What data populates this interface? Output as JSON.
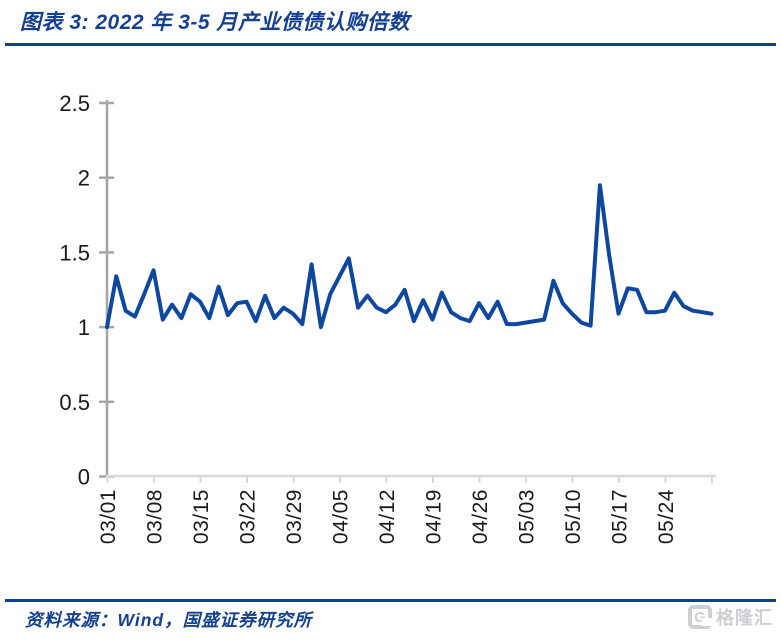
{
  "header": {
    "title": "图表 3:  2022 年 3-5 月产业债债认购倍数"
  },
  "footer": {
    "source_label": "资料来源：Wind，国盛证券研究所"
  },
  "watermark": {
    "logo_letter": "G",
    "brand": "格隆汇"
  },
  "colors": {
    "accent_navy": "#14418f",
    "line_blue": "#0e479f",
    "y_axis_gray": "#a6a6a6",
    "x_axis_gray": "#d9d9d9",
    "tick_label_color": "#1a1a1a",
    "watermark_gray": "#c4c8cc"
  },
  "chart_data": {
    "type": "line",
    "title": "2022 年 3-5 月产业债债认购倍数",
    "xlabel": "",
    "ylabel": "",
    "ylim": [
      0,
      2.5
    ],
    "yticks": [
      0,
      0.5,
      1,
      1.5,
      2,
      2.5
    ],
    "y_tick_labels": [
      "0",
      "0.5",
      "1",
      "1.5",
      "2",
      "2.5"
    ],
    "x_tick_labels": [
      "03/01",
      "03/08",
      "03/15",
      "03/22",
      "03/29",
      "04/05",
      "04/12",
      "04/19",
      "04/26",
      "05/03",
      "05/10",
      "05/17",
      "05/24"
    ],
    "grid": "off",
    "legend": "none",
    "series": [
      {
        "name": "产业债认购倍数",
        "x": [
          "03/01",
          "03/02",
          "03/03",
          "03/04",
          "03/07",
          "03/08",
          "03/09",
          "03/10",
          "03/11",
          "03/14",
          "03/15",
          "03/16",
          "03/17",
          "03/18",
          "03/21",
          "03/22",
          "03/23",
          "03/24",
          "03/25",
          "03/28",
          "03/29",
          "03/30",
          "03/31",
          "04/01",
          "04/04",
          "04/05",
          "04/06",
          "04/07",
          "04/08",
          "04/11",
          "04/12",
          "04/13",
          "04/14",
          "04/15",
          "04/18",
          "04/19",
          "04/20",
          "04/21",
          "04/22",
          "04/25",
          "04/26",
          "04/27",
          "04/28",
          "04/29",
          "05/02",
          "05/03",
          "05/04",
          "05/05",
          "05/06",
          "05/09",
          "05/10",
          "05/11",
          "05/12",
          "05/13",
          "05/16",
          "05/17",
          "05/18",
          "05/19",
          "05/20",
          "05/23",
          "05/24",
          "05/25",
          "05/26",
          "05/27",
          "05/30",
          "05/31"
        ],
        "values": [
          1.0,
          1.34,
          1.11,
          1.07,
          1.22,
          1.38,
          1.05,
          1.15,
          1.06,
          1.22,
          1.17,
          1.06,
          1.27,
          1.08,
          1.16,
          1.17,
          1.04,
          1.21,
          1.06,
          1.13,
          1.09,
          1.02,
          1.42,
          1.0,
          1.22,
          1.34,
          1.46,
          1.13,
          1.21,
          1.13,
          1.1,
          1.15,
          1.25,
          1.04,
          1.18,
          1.05,
          1.23,
          1.1,
          1.06,
          1.04,
          1.16,
          1.06,
          1.17,
          1.02,
          1.02,
          1.03,
          1.04,
          1.05,
          1.31,
          1.16,
          1.09,
          1.03,
          1.01,
          1.95,
          1.48,
          1.09,
          1.26,
          1.25,
          1.1,
          1.1,
          1.11,
          1.23,
          1.14,
          1.11,
          1.1,
          1.09
        ]
      }
    ]
  }
}
